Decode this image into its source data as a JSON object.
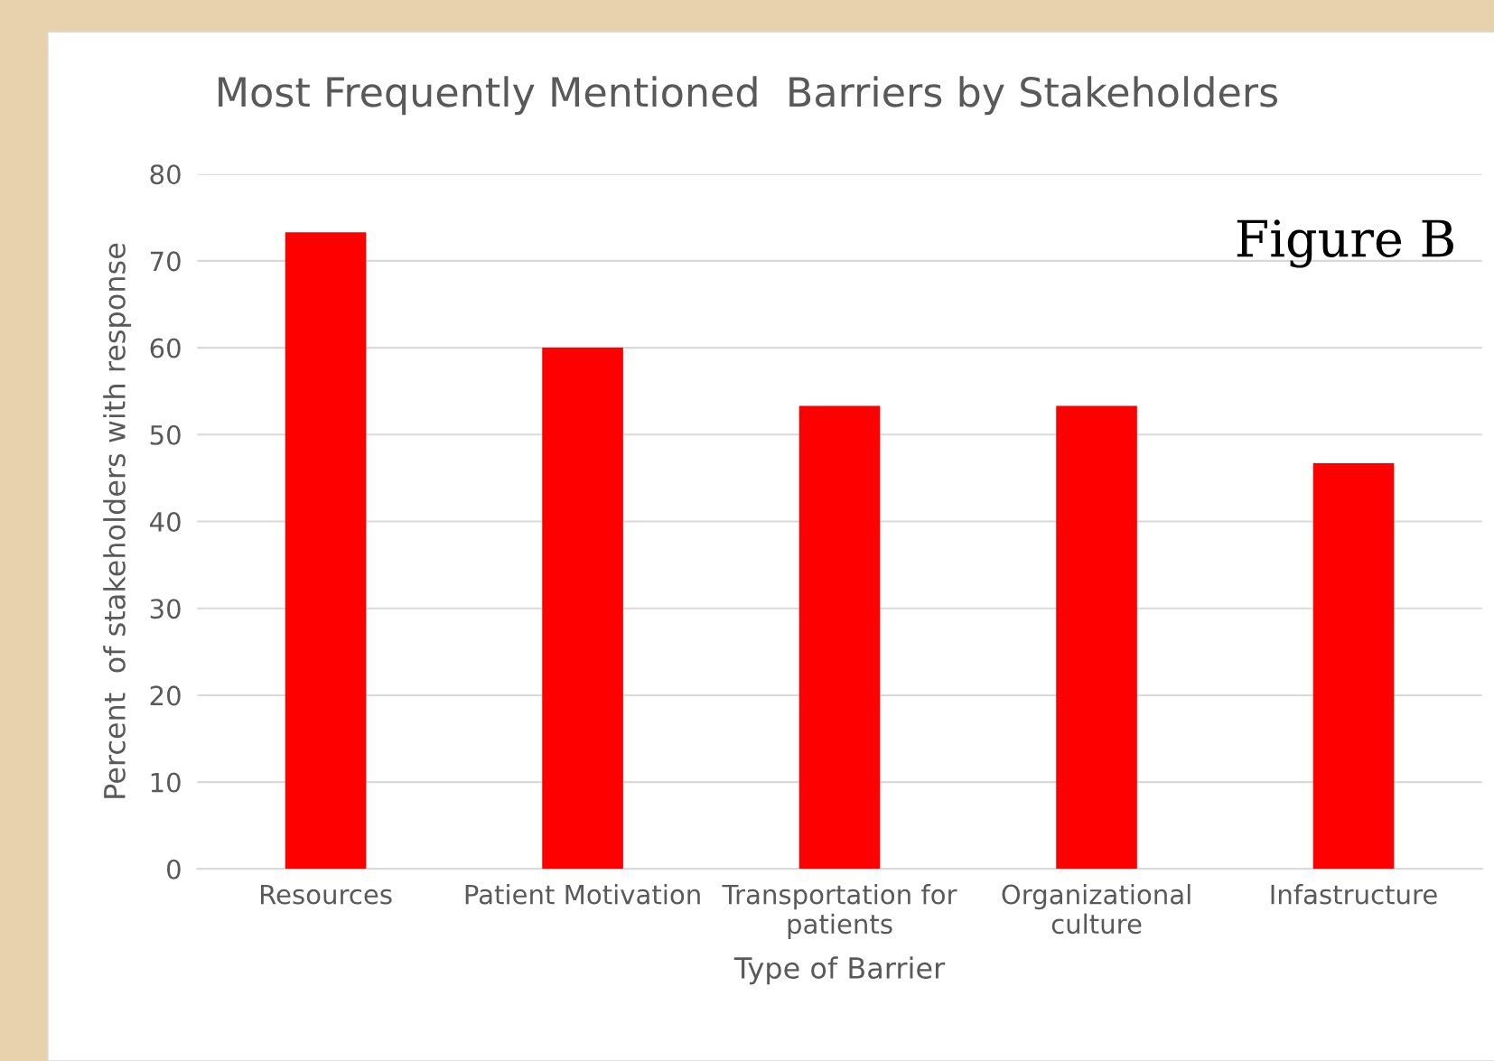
{
  "chart_data": {
    "type": "bar",
    "title": "Most Frequently Mentioned  Barriers by Stakeholders",
    "categories": [
      "Resources",
      "Patient Motivation",
      "Transportation for\npatients",
      "Organizational\nculture",
      "Infastructure"
    ],
    "values": [
      73.3,
      60,
      53.3,
      53.3,
      46.7
    ],
    "color": "#ff0000",
    "xlabel": "Type of Barrier",
    "ylabel": "Percent  of stakeholders with response",
    "ylim": [
      0,
      80
    ],
    "yticks": [
      0,
      10,
      20,
      30,
      40,
      50,
      60,
      70,
      80
    ],
    "grid": "y",
    "annotations": [
      "Figure B"
    ]
  }
}
